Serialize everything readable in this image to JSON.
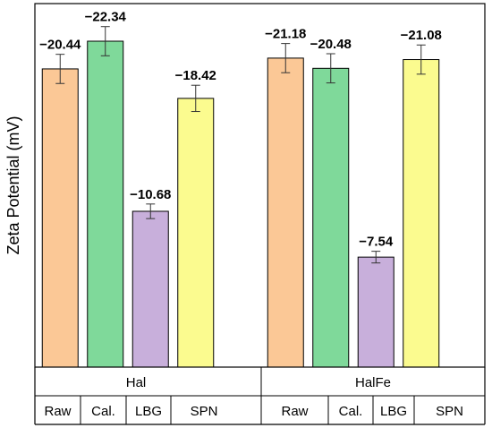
{
  "chart_data": {
    "type": "bar",
    "ylabel": "Zeta Potential (mV)",
    "groups": [
      {
        "name": "Hal",
        "categories": [
          "Raw",
          "Cal.",
          "LBG",
          "SPN"
        ]
      },
      {
        "name": "HalFe",
        "categories": [
          "Raw",
          "Cal.",
          "LBG",
          "SPN"
        ]
      }
    ],
    "bars": [
      {
        "group": "Hal",
        "category": "Raw",
        "value": -20.44,
        "label": "−20.44",
        "error": 1.0,
        "color": "#FBC896"
      },
      {
        "group": "Hal",
        "category": "Cal.",
        "value": -22.34,
        "label": "−22.34",
        "error": 1.0,
        "color": "#7FD99A"
      },
      {
        "group": "Hal",
        "category": "LBG",
        "value": -10.68,
        "label": "−10.68",
        "error": 0.5,
        "color": "#C8AFDB"
      },
      {
        "group": "Hal",
        "category": "SPN",
        "value": -18.42,
        "label": "−18.42",
        "error": 0.9,
        "color": "#FBFB8F"
      },
      {
        "group": "HalFe",
        "category": "Raw",
        "value": -21.18,
        "label": "−21.18",
        "error": 1.0,
        "color": "#FBC896"
      },
      {
        "group": "HalFe",
        "category": "Cal.",
        "value": -20.48,
        "label": "−20.48",
        "error": 1.0,
        "color": "#7FD99A"
      },
      {
        "group": "HalFe",
        "category": "LBG",
        "value": -7.54,
        "label": "−7.54",
        "error": 0.4,
        "color": "#C8AFDB"
      },
      {
        "group": "HalFe",
        "category": "SPN",
        "value": -21.08,
        "label": "−21.08",
        "error": 1.0,
        "color": "#FBFB8F"
      }
    ],
    "ylim": [
      0,
      -25
    ],
    "grid": false,
    "legend": "none"
  }
}
